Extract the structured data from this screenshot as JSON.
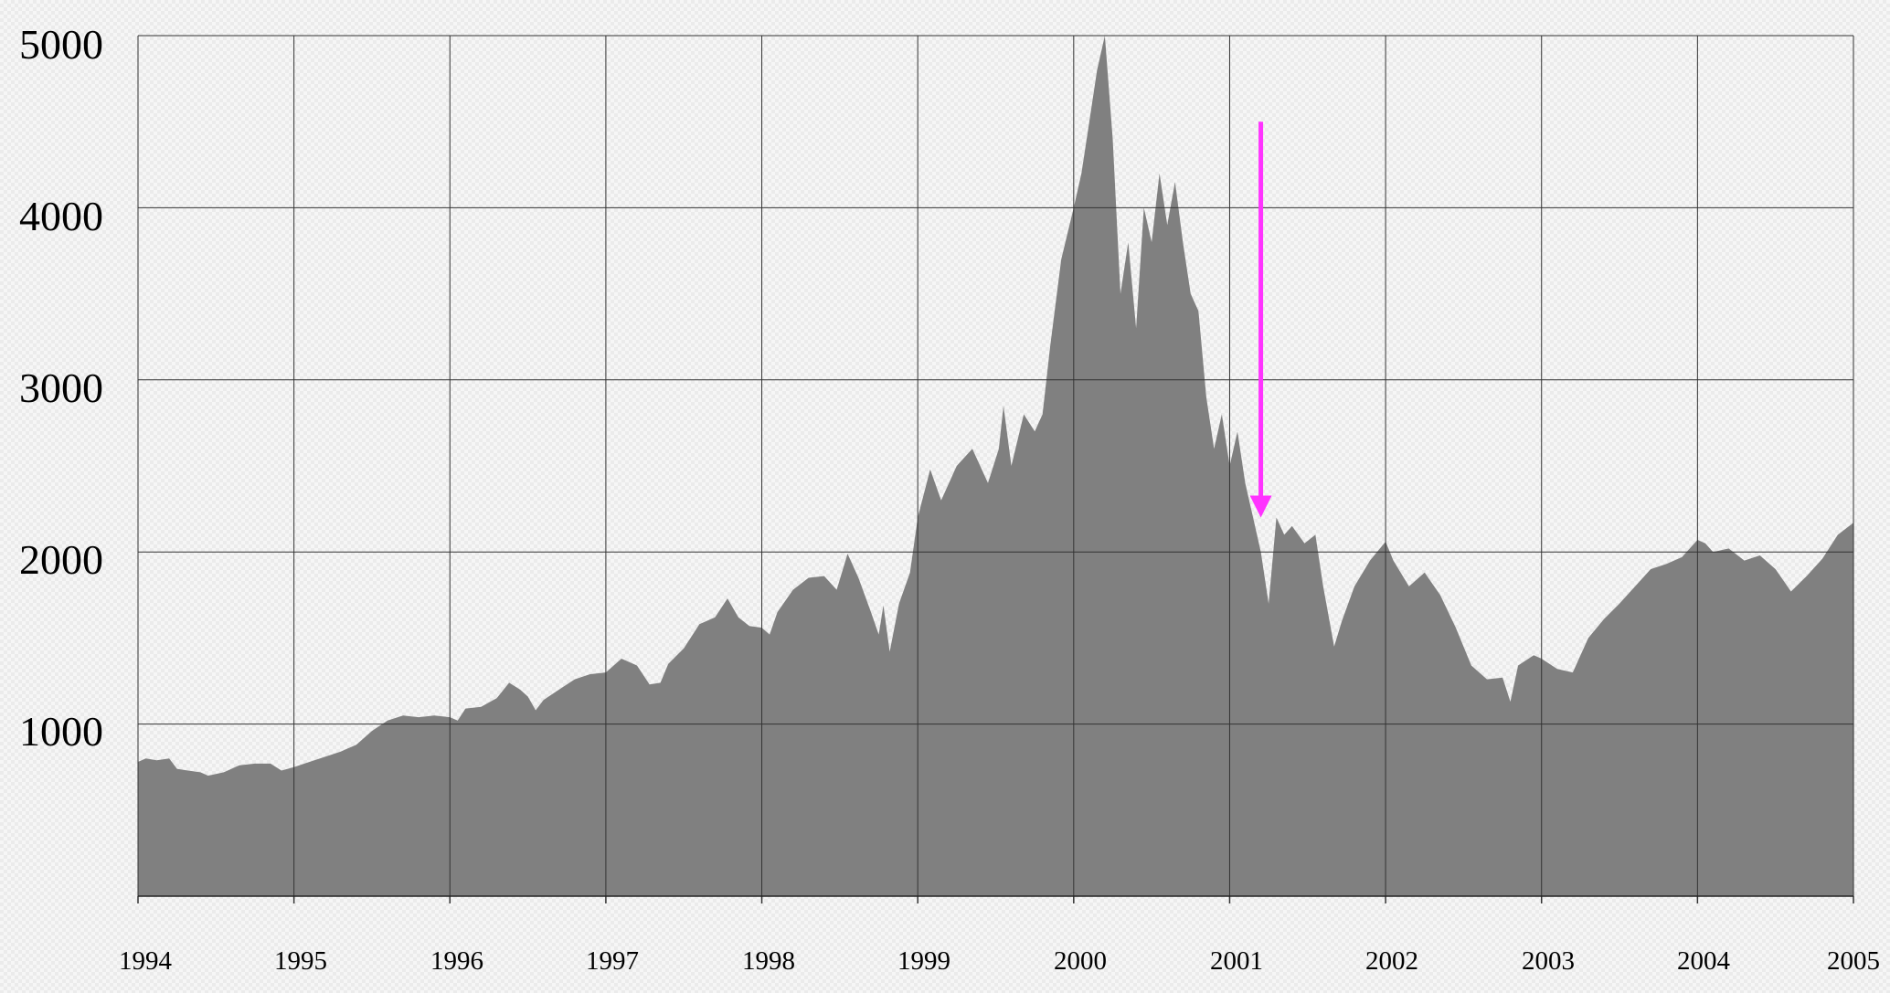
{
  "chart_data": {
    "type": "area",
    "title": "",
    "xlabel": "",
    "ylabel": "",
    "x_ticks": [
      "1994",
      "1995",
      "1996",
      "1997",
      "1998",
      "1999",
      "2000",
      "2001",
      "2002",
      "2003",
      "2004",
      "2005"
    ],
    "y_ticks": [
      "1000",
      "2000",
      "3000",
      "4000",
      "5000"
    ],
    "xlim": [
      1994,
      2005
    ],
    "ylim": [
      0,
      5000
    ],
    "grid": true,
    "legend": "none",
    "fill_color": "#808080",
    "grid_color": "#333333",
    "annotation": {
      "type": "arrow",
      "color": "#ff33ff",
      "x": 2001.2,
      "y_from": 4500,
      "y_to": 2200
    },
    "series": [
      {
        "values": [
          [
            1994.0,
            780
          ],
          [
            1994.05,
            800
          ],
          [
            1994.12,
            790
          ],
          [
            1994.2,
            800
          ],
          [
            1994.25,
            740
          ],
          [
            1994.32,
            730
          ],
          [
            1994.4,
            720
          ],
          [
            1994.45,
            700
          ],
          [
            1994.55,
            720
          ],
          [
            1994.65,
            760
          ],
          [
            1994.75,
            770
          ],
          [
            1994.85,
            770
          ],
          [
            1994.92,
            730
          ],
          [
            1995.0,
            750
          ],
          [
            1995.1,
            780
          ],
          [
            1995.2,
            810
          ],
          [
            1995.3,
            840
          ],
          [
            1995.4,
            880
          ],
          [
            1995.5,
            960
          ],
          [
            1995.6,
            1020
          ],
          [
            1995.7,
            1050
          ],
          [
            1995.8,
            1040
          ],
          [
            1995.9,
            1050
          ],
          [
            1996.0,
            1040
          ],
          [
            1996.05,
            1020
          ],
          [
            1996.1,
            1090
          ],
          [
            1996.2,
            1100
          ],
          [
            1996.3,
            1150
          ],
          [
            1996.38,
            1240
          ],
          [
            1996.45,
            1200
          ],
          [
            1996.5,
            1160
          ],
          [
            1996.55,
            1080
          ],
          [
            1996.6,
            1140
          ],
          [
            1996.7,
            1200
          ],
          [
            1996.8,
            1260
          ],
          [
            1996.9,
            1290
          ],
          [
            1997.0,
            1300
          ],
          [
            1997.1,
            1380
          ],
          [
            1997.2,
            1340
          ],
          [
            1997.28,
            1230
          ],
          [
            1997.35,
            1240
          ],
          [
            1997.4,
            1350
          ],
          [
            1997.5,
            1440
          ],
          [
            1997.6,
            1580
          ],
          [
            1997.7,
            1620
          ],
          [
            1997.78,
            1730
          ],
          [
            1997.85,
            1620
          ],
          [
            1997.92,
            1570
          ],
          [
            1998.0,
            1560
          ],
          [
            1998.05,
            1520
          ],
          [
            1998.1,
            1650
          ],
          [
            1998.2,
            1780
          ],
          [
            1998.3,
            1850
          ],
          [
            1998.4,
            1860
          ],
          [
            1998.48,
            1780
          ],
          [
            1998.55,
            1990
          ],
          [
            1998.62,
            1850
          ],
          [
            1998.7,
            1650
          ],
          [
            1998.75,
            1520
          ],
          [
            1998.78,
            1690
          ],
          [
            1998.82,
            1420
          ],
          [
            1998.88,
            1700
          ],
          [
            1998.95,
            1880
          ],
          [
            1999.0,
            2200
          ],
          [
            1999.08,
            2480
          ],
          [
            1999.15,
            2300
          ],
          [
            1999.25,
            2500
          ],
          [
            1999.35,
            2600
          ],
          [
            1999.45,
            2400
          ],
          [
            1999.52,
            2600
          ],
          [
            1999.55,
            2850
          ],
          [
            1999.6,
            2500
          ],
          [
            1999.68,
            2800
          ],
          [
            1999.75,
            2700
          ],
          [
            1999.8,
            2800
          ],
          [
            1999.85,
            3200
          ],
          [
            1999.92,
            3700
          ],
          [
            2000.0,
            4000
          ],
          [
            2000.05,
            4200
          ],
          [
            2000.1,
            4500
          ],
          [
            2000.15,
            4800
          ],
          [
            2000.2,
            5050
          ],
          [
            2000.25,
            4400
          ],
          [
            2000.3,
            3500
          ],
          [
            2000.35,
            3800
          ],
          [
            2000.4,
            3300
          ],
          [
            2000.45,
            4000
          ],
          [
            2000.5,
            3800
          ],
          [
            2000.55,
            4200
          ],
          [
            2000.6,
            3900
          ],
          [
            2000.65,
            4150
          ],
          [
            2000.7,
            3800
          ],
          [
            2000.75,
            3500
          ],
          [
            2000.8,
            3400
          ],
          [
            2000.85,
            2900
          ],
          [
            2000.9,
            2600
          ],
          [
            2000.95,
            2800
          ],
          [
            2001.0,
            2500
          ],
          [
            2001.05,
            2700
          ],
          [
            2001.1,
            2400
          ],
          [
            2001.15,
            2200
          ],
          [
            2001.2,
            2000
          ],
          [
            2001.25,
            1700
          ],
          [
            2001.3,
            2200
          ],
          [
            2001.35,
            2100
          ],
          [
            2001.4,
            2150
          ],
          [
            2001.48,
            2050
          ],
          [
            2001.55,
            2100
          ],
          [
            2001.6,
            1800
          ],
          [
            2001.67,
            1450
          ],
          [
            2001.72,
            1600
          ],
          [
            2001.8,
            1800
          ],
          [
            2001.9,
            1950
          ],
          [
            2002.0,
            2060
          ],
          [
            2002.05,
            1950
          ],
          [
            2002.15,
            1800
          ],
          [
            2002.25,
            1880
          ],
          [
            2002.35,
            1750
          ],
          [
            2002.45,
            1560
          ],
          [
            2002.55,
            1340
          ],
          [
            2002.65,
            1260
          ],
          [
            2002.75,
            1270
          ],
          [
            2002.8,
            1130
          ],
          [
            2002.85,
            1340
          ],
          [
            2002.95,
            1400
          ],
          [
            2003.0,
            1380
          ],
          [
            2003.1,
            1320
          ],
          [
            2003.2,
            1300
          ],
          [
            2003.3,
            1500
          ],
          [
            2003.4,
            1610
          ],
          [
            2003.5,
            1700
          ],
          [
            2003.6,
            1800
          ],
          [
            2003.7,
            1900
          ],
          [
            2003.8,
            1930
          ],
          [
            2003.9,
            1970
          ],
          [
            2004.0,
            2070
          ],
          [
            2004.05,
            2050
          ],
          [
            2004.1,
            2000
          ],
          [
            2004.2,
            2020
          ],
          [
            2004.3,
            1950
          ],
          [
            2004.4,
            1980
          ],
          [
            2004.5,
            1900
          ],
          [
            2004.6,
            1770
          ],
          [
            2004.7,
            1860
          ],
          [
            2004.8,
            1960
          ],
          [
            2004.9,
            2100
          ],
          [
            2005.0,
            2170
          ]
        ]
      }
    ]
  }
}
